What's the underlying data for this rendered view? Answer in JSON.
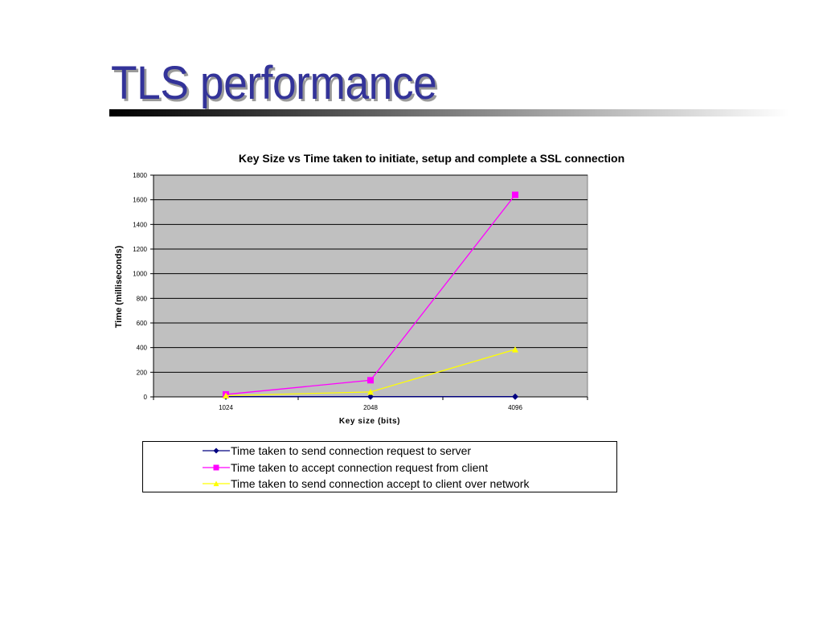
{
  "slide": {
    "title": "TLS performance"
  },
  "chart_data": {
    "type": "line",
    "title": "Key Size vs Time taken to initiate, setup and complete a SSL connection",
    "xlabel": "Key size (bits)",
    "ylabel": "Time (milliseconds)",
    "categories": [
      "1024",
      "2048",
      "4096"
    ],
    "ylim": [
      0,
      1800
    ],
    "yticks": [
      0,
      200,
      400,
      600,
      800,
      1000,
      1200,
      1400,
      1600,
      1800
    ],
    "grid": true,
    "legend_position": "bottom",
    "plot_background": "#c0c0c0",
    "series": [
      {
        "name": "Time taken to send connection request to server",
        "values": [
          2,
          2,
          2
        ],
        "color": "#000080",
        "marker": "diamond"
      },
      {
        "name": "Time taken to accept connection request from client",
        "values": [
          20,
          135,
          1640
        ],
        "color": "#ff00ff",
        "marker": "square"
      },
      {
        "name": "Time taken to send connection accept to client over network",
        "values": [
          10,
          40,
          385
        ],
        "color": "#ffff00",
        "marker": "triangle"
      }
    ]
  }
}
